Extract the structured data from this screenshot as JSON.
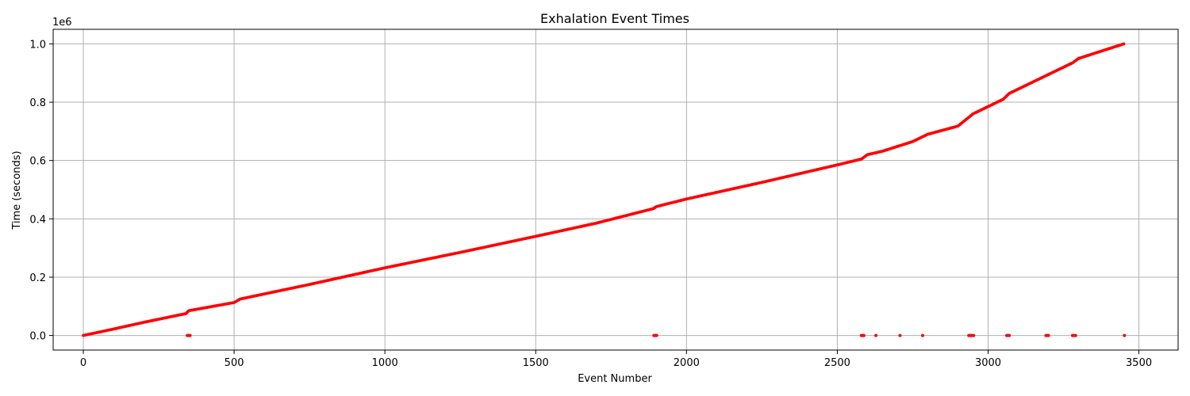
{
  "chart_data": {
    "type": "scatter",
    "title": "Exhalation Event Times",
    "xlabel": "Event Number",
    "ylabel": "Time (seconds)",
    "y_offset_label": "1e6",
    "xlim": [
      -100,
      3630
    ],
    "ylim": [
      -0.05,
      1.05
    ],
    "y_multiplier": 1000000,
    "grid": true,
    "marker_color": "#ff0000",
    "xticks": [
      0,
      500,
      1000,
      1500,
      2000,
      2500,
      3000,
      3500
    ],
    "xtick_labels": [
      "0",
      "500",
      "1000",
      "1500",
      "2000",
      "2500",
      "3000",
      "3500"
    ],
    "yticks": [
      0.0,
      0.2,
      0.4,
      0.6,
      0.8,
      1.0
    ],
    "ytick_labels": [
      "0.0",
      "0.2",
      "0.4",
      "0.6",
      "0.8",
      "1.0"
    ],
    "series": [
      {
        "points": [
          {
            "x": 0,
            "y": 0.0
          },
          {
            "x": 100,
            "y": 0.022
          },
          {
            "x": 200,
            "y": 0.045
          },
          {
            "x": 340,
            "y": 0.075
          },
          {
            "x": 350,
            "y": 0.085
          },
          {
            "x": 500,
            "y": 0.113
          },
          {
            "x": 520,
            "y": 0.125
          },
          {
            "x": 750,
            "y": 0.175
          },
          {
            "x": 1000,
            "y": 0.232
          },
          {
            "x": 1250,
            "y": 0.285
          },
          {
            "x": 1500,
            "y": 0.34
          },
          {
            "x": 1700,
            "y": 0.385
          },
          {
            "x": 1890,
            "y": 0.435
          },
          {
            "x": 1900,
            "y": 0.442
          },
          {
            "x": 2000,
            "y": 0.468
          },
          {
            "x": 2250,
            "y": 0.525
          },
          {
            "x": 2500,
            "y": 0.585
          },
          {
            "x": 2580,
            "y": 0.605
          },
          {
            "x": 2600,
            "y": 0.62
          },
          {
            "x": 2650,
            "y": 0.632
          },
          {
            "x": 2750,
            "y": 0.665
          },
          {
            "x": 2800,
            "y": 0.69
          },
          {
            "x": 2900,
            "y": 0.718
          },
          {
            "x": 2950,
            "y": 0.76
          },
          {
            "x": 3050,
            "y": 0.81
          },
          {
            "x": 3070,
            "y": 0.83
          },
          {
            "x": 3200,
            "y": 0.895
          },
          {
            "x": 3280,
            "y": 0.935
          },
          {
            "x": 3300,
            "y": 0.95
          },
          {
            "x": 3450,
            "y": 1.0
          }
        ],
        "outliers": [
          {
            "x": 345,
            "y": 0.0
          },
          {
            "x": 348,
            "y": 0.0
          },
          {
            "x": 351,
            "y": 0.0
          },
          {
            "x": 354,
            "y": 0.0
          },
          {
            "x": 1892,
            "y": 0.0
          },
          {
            "x": 1895,
            "y": 0.0
          },
          {
            "x": 1898,
            "y": 0.0
          },
          {
            "x": 1901,
            "y": 0.0
          },
          {
            "x": 2580,
            "y": 0.0
          },
          {
            "x": 2584,
            "y": 0.0
          },
          {
            "x": 2588,
            "y": 0.0
          },
          {
            "x": 2628,
            "y": 0.0
          },
          {
            "x": 2708,
            "y": 0.0
          },
          {
            "x": 2783,
            "y": 0.0
          },
          {
            "x": 2936,
            "y": 0.0
          },
          {
            "x": 2941,
            "y": 0.0
          },
          {
            "x": 2946,
            "y": 0.0
          },
          {
            "x": 2952,
            "y": 0.0
          },
          {
            "x": 3062,
            "y": 0.0
          },
          {
            "x": 3066,
            "y": 0.0
          },
          {
            "x": 3070,
            "y": 0.0
          },
          {
            "x": 3192,
            "y": 0.0
          },
          {
            "x": 3196,
            "y": 0.0
          },
          {
            "x": 3200,
            "y": 0.0
          },
          {
            "x": 3280,
            "y": 0.0
          },
          {
            "x": 3285,
            "y": 0.0
          },
          {
            "x": 3290,
            "y": 0.0
          },
          {
            "x": 3452,
            "y": 0.0
          }
        ]
      }
    ]
  }
}
